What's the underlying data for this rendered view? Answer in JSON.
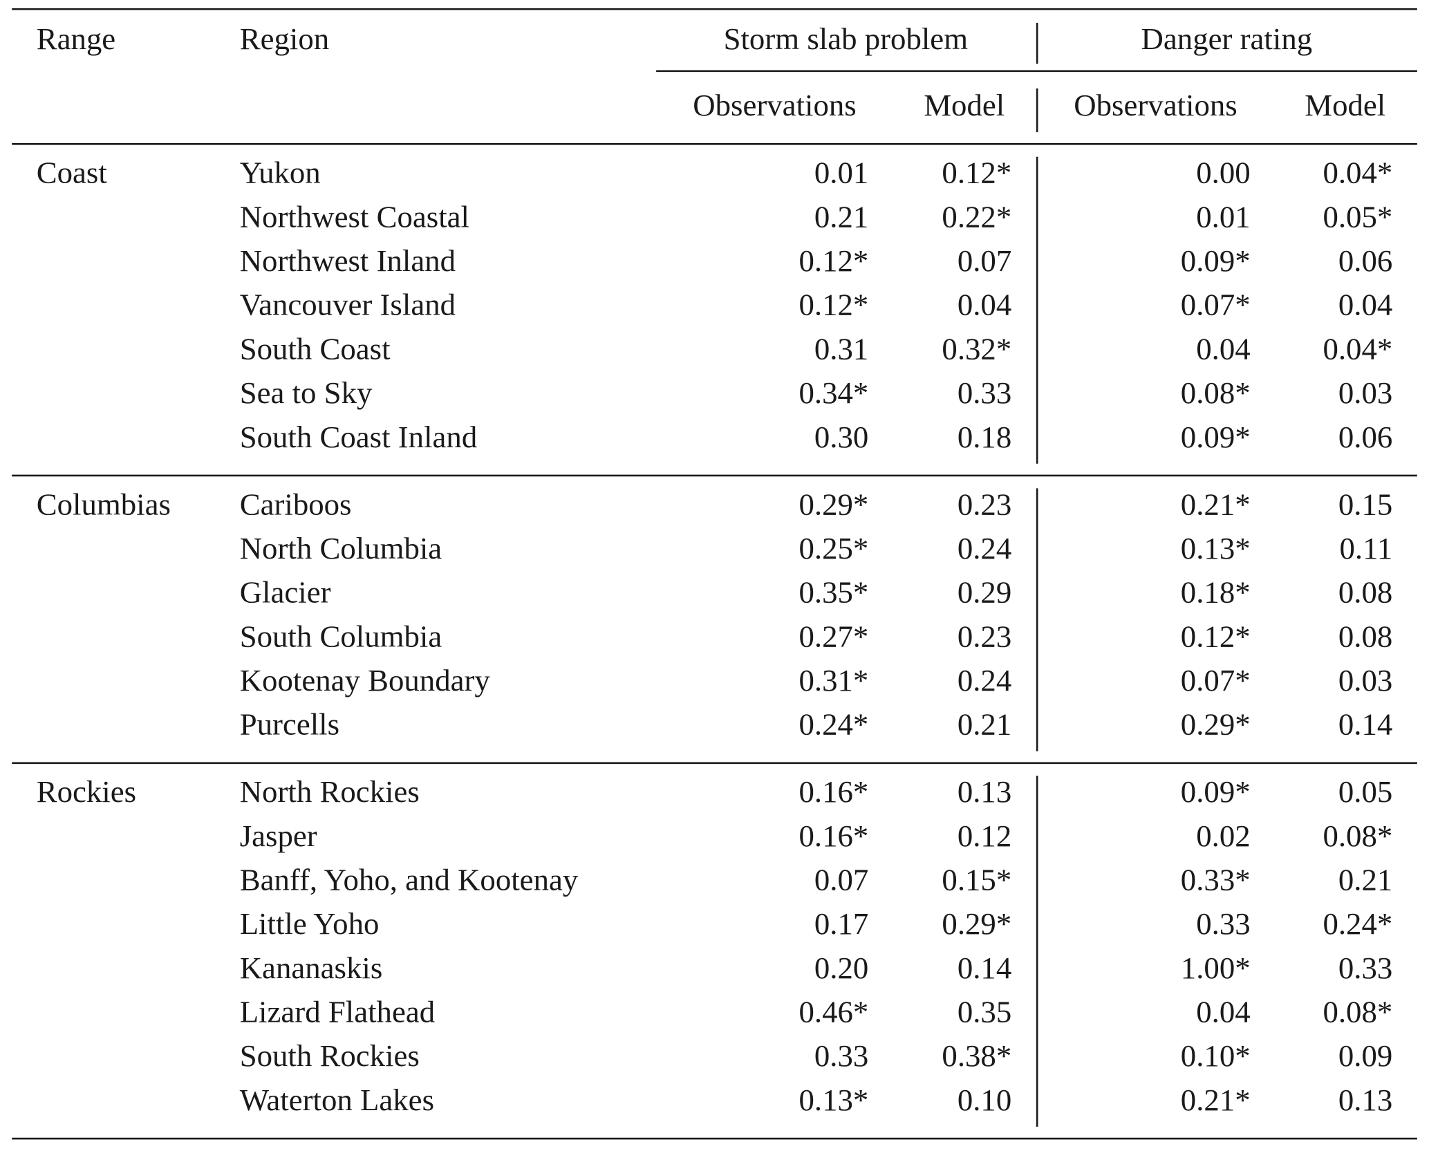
{
  "table": {
    "header": {
      "range": "Range",
      "region": "Region",
      "groups": [
        "Storm slab problem",
        "Danger rating"
      ],
      "subheaders": [
        "Observations",
        "Model",
        "Observations",
        "Model"
      ]
    },
    "groups": [
      {
        "range": "Coast",
        "rows": [
          {
            "region": "Yukon",
            "cells": [
              "0.01",
              "0.12*",
              "0.00",
              "0.04*"
            ]
          },
          {
            "region": "Northwest Coastal",
            "cells": [
              "0.21",
              "0.22*",
              "0.01",
              "0.05*"
            ]
          },
          {
            "region": "Northwest Inland",
            "cells": [
              "0.12*",
              "0.07",
              "0.09*",
              "0.06"
            ]
          },
          {
            "region": "Vancouver Island",
            "cells": [
              "0.12*",
              "0.04",
              "0.07*",
              "0.04"
            ]
          },
          {
            "region": "South Coast",
            "cells": [
              "0.31",
              "0.32*",
              "0.04",
              "0.04*"
            ]
          },
          {
            "region": "Sea to Sky",
            "cells": [
              "0.34*",
              "0.33",
              "0.08*",
              "0.03"
            ]
          },
          {
            "region": "South Coast Inland",
            "cells": [
              "0.30",
              "0.18",
              "0.09*",
              "0.06"
            ]
          }
        ]
      },
      {
        "range": "Columbias",
        "rows": [
          {
            "region": "Cariboos",
            "cells": [
              "0.29*",
              "0.23",
              "0.21*",
              "0.15"
            ]
          },
          {
            "region": "North Columbia",
            "cells": [
              "0.25*",
              "0.24",
              "0.13*",
              "0.11"
            ]
          },
          {
            "region": "Glacier",
            "cells": [
              "0.35*",
              "0.29",
              "0.18*",
              "0.08"
            ]
          },
          {
            "region": "South Columbia",
            "cells": [
              "0.27*",
              "0.23",
              "0.12*",
              "0.08"
            ]
          },
          {
            "region": "Kootenay Boundary",
            "cells": [
              "0.31*",
              "0.24",
              "0.07*",
              "0.03"
            ]
          },
          {
            "region": "Purcells",
            "cells": [
              "0.24*",
              "0.21",
              "0.29*",
              "0.14"
            ]
          }
        ]
      },
      {
        "range": "Rockies",
        "rows": [
          {
            "region": "North Rockies",
            "cells": [
              "0.16*",
              "0.13",
              "0.09*",
              "0.05"
            ]
          },
          {
            "region": "Jasper",
            "cells": [
              "0.16*",
              "0.12",
              "0.02",
              "0.08*"
            ]
          },
          {
            "region": "Banff, Yoho, and Kootenay",
            "cells": [
              "0.07",
              "0.15*",
              "0.33*",
              "0.21"
            ]
          },
          {
            "region": "Little Yoho",
            "cells": [
              "0.17",
              "0.29*",
              "0.33",
              "0.24*"
            ]
          },
          {
            "region": "Kananaskis",
            "cells": [
              "0.20",
              "0.14",
              "1.00*",
              "0.33"
            ]
          },
          {
            "region": "Lizard Flathead",
            "cells": [
              "0.46*",
              "0.35",
              "0.04",
              "0.08*"
            ]
          },
          {
            "region": "South Rockies",
            "cells": [
              "0.33",
              "0.38*",
              "0.10*",
              "0.09"
            ]
          },
          {
            "region": "Waterton Lakes",
            "cells": [
              "0.13*",
              "0.10",
              "0.21*",
              "0.13"
            ]
          }
        ]
      }
    ]
  }
}
